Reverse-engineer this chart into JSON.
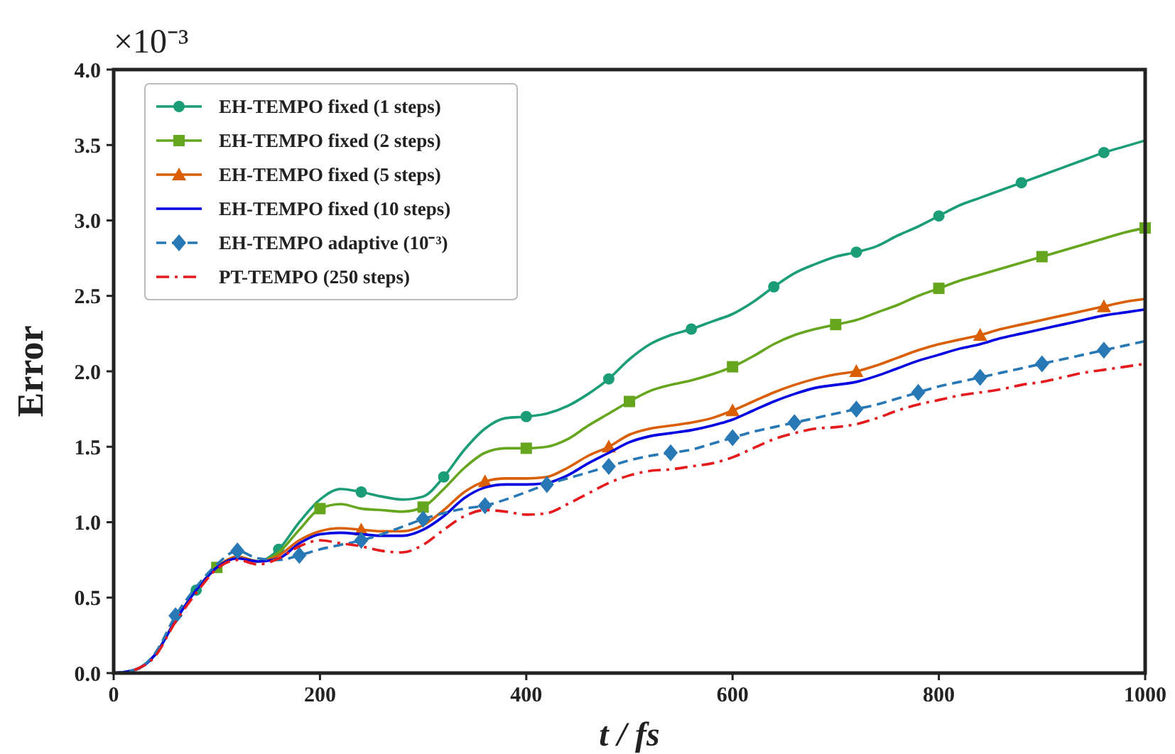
{
  "chart_data": {
    "type": "line",
    "xlabel": "t / fs",
    "ylabel": "Error",
    "annotations": [
      "×10⁻³"
    ],
    "x": [
      0,
      20,
      40,
      60,
      80,
      100,
      120,
      140,
      160,
      180,
      200,
      220,
      240,
      260,
      280,
      300,
      320,
      340,
      360,
      380,
      400,
      420,
      440,
      460,
      480,
      500,
      520,
      540,
      560,
      580,
      600,
      620,
      640,
      660,
      680,
      700,
      720,
      740,
      760,
      780,
      800,
      820,
      840,
      860,
      880,
      900,
      920,
      940,
      960,
      980,
      1000
    ],
    "xlim": [
      0,
      1000
    ],
    "xticks": [
      0,
      200,
      400,
      600,
      800,
      1000
    ],
    "ylim": [
      0,
      4
    ],
    "yticks": [
      {
        "value": 0,
        "label": "0.0"
      },
      {
        "value": 0.5,
        "label": "0.5"
      },
      {
        "value": 1,
        "label": "1.0"
      },
      {
        "value": 1.5,
        "label": "1.5"
      },
      {
        "value": 2,
        "label": "2.0"
      },
      {
        "value": 2.5,
        "label": "2.5"
      },
      {
        "value": 3,
        "label": "3.0"
      },
      {
        "value": 3.5,
        "label": "3.5"
      },
      {
        "value": 4,
        "label": "4.0"
      }
    ],
    "grid": false,
    "legend": "top left",
    "series": [
      {
        "name": "EH-TEMPO fixed (1 steps)",
        "color": "#1b9e77",
        "marker": "none",
        "line_style": "solid",
        "values": [
          0,
          0.02,
          0.12,
          0.35,
          0.55,
          0.7,
          0.77,
          0.74,
          0.82,
          1.0,
          1.15,
          1.22,
          1.2,
          1.17,
          1.15,
          1.17,
          1.3,
          1.48,
          1.62,
          1.69,
          1.7,
          1.72,
          1.77,
          1.85,
          1.95,
          2.08,
          2.18,
          2.24,
          2.28,
          2.33,
          2.38,
          2.46,
          2.56,
          2.65,
          2.71,
          2.76,
          2.79,
          2.83,
          2.9,
          2.96,
          3.03,
          3.1,
          3.15,
          3.2,
          3.25,
          3.3,
          3.35,
          3.4,
          3.45,
          3.49,
          3.53
        ]
      },
      {
        "type": "scatter",
        "color": "#1b9e77",
        "marker": "circle",
        "x": [
          80,
          160,
          240,
          320,
          400,
          480,
          560,
          640,
          720,
          800,
          880,
          960
        ],
        "values": [
          0.55,
          0.82,
          1.2,
          1.3,
          1.7,
          1.95,
          2.28,
          2.56,
          2.79,
          3.03,
          3.25,
          3.45
        ]
      },
      {
        "name": "EH-TEMPO fixed (2 steps)",
        "color": "#66a61e",
        "marker": "none",
        "line_style": "solid",
        "values": [
          null,
          null,
          null,
          null,
          0.55,
          0.7,
          0.77,
          0.74,
          0.8,
          0.95,
          1.09,
          1.12,
          1.09,
          1.08,
          1.07,
          1.1,
          1.22,
          1.36,
          1.46,
          1.49,
          1.49,
          1.5,
          1.55,
          1.64,
          1.72,
          1.8,
          1.87,
          1.91,
          1.94,
          1.98,
          2.03,
          2.1,
          2.18,
          2.24,
          2.28,
          2.31,
          2.34,
          2.39,
          2.44,
          2.5,
          2.55,
          2.6,
          2.64,
          2.68,
          2.72,
          2.76,
          2.8,
          2.84,
          2.88,
          2.92,
          2.95
        ]
      },
      {
        "type": "scatter",
        "color": "#66a61e",
        "marker": "square",
        "x": [
          100,
          200,
          300,
          400,
          500,
          600,
          700,
          800,
          900,
          1000
        ],
        "values": [
          0.7,
          1.09,
          1.1,
          1.49,
          1.8,
          2.03,
          2.31,
          2.55,
          2.76,
          2.95
        ]
      },
      {
        "name": "EH-TEMPO fixed (5 steps)",
        "color": "#d95f02",
        "marker": "none",
        "line_style": "solid",
        "values": [
          null,
          null,
          null,
          null,
          0.55,
          0.7,
          0.77,
          0.74,
          0.78,
          0.88,
          0.94,
          0.96,
          0.95,
          0.94,
          0.94,
          0.98,
          1.08,
          1.2,
          1.27,
          1.29,
          1.29,
          1.3,
          1.36,
          1.44,
          1.5,
          1.58,
          1.62,
          1.64,
          1.66,
          1.69,
          1.74,
          1.8,
          1.86,
          1.91,
          1.95,
          1.98,
          2.0,
          2.04,
          2.09,
          2.14,
          2.18,
          2.21,
          2.24,
          2.28,
          2.31,
          2.34,
          2.37,
          2.4,
          2.43,
          2.46,
          2.48
        ]
      },
      {
        "type": "scatter",
        "color": "#d95f02",
        "marker": "triangle",
        "x": [
          240,
          360,
          480,
          600,
          720,
          840,
          960
        ],
        "values": [
          0.95,
          1.27,
          1.5,
          1.74,
          2.0,
          2.24,
          2.43
        ]
      },
      {
        "name": "EH-TEMPO fixed (10 steps)",
        "color": "#0000e0",
        "marker": "none",
        "line_style": "solid",
        "values": [
          0,
          0.02,
          0.12,
          0.35,
          0.55,
          0.7,
          0.76,
          0.74,
          0.76,
          0.86,
          0.92,
          0.93,
          0.92,
          0.91,
          0.91,
          0.95,
          1.04,
          1.16,
          1.23,
          1.25,
          1.25,
          1.26,
          1.31,
          1.39,
          1.46,
          1.53,
          1.57,
          1.59,
          1.61,
          1.64,
          1.68,
          1.74,
          1.8,
          1.85,
          1.89,
          1.91,
          1.93,
          1.97,
          2.02,
          2.07,
          2.11,
          2.15,
          2.18,
          2.22,
          2.25,
          2.28,
          2.31,
          2.34,
          2.37,
          2.39,
          2.41
        ]
      },
      {
        "name": "EH-TEMPO adaptive (10⁻³)",
        "color": "#2878b5",
        "marker": "none",
        "line_style": "dashed",
        "values": [
          0,
          0.02,
          0.13,
          0.38,
          0.57,
          0.72,
          0.81,
          0.76,
          0.75,
          0.78,
          0.82,
          0.85,
          0.88,
          0.92,
          0.97,
          1.02,
          1.06,
          1.09,
          1.11,
          1.15,
          1.2,
          1.25,
          1.29,
          1.33,
          1.37,
          1.41,
          1.44,
          1.46,
          1.48,
          1.52,
          1.56,
          1.6,
          1.63,
          1.66,
          1.69,
          1.72,
          1.75,
          1.78,
          1.82,
          1.86,
          1.9,
          1.93,
          1.96,
          1.99,
          2.02,
          2.05,
          2.08,
          2.11,
          2.14,
          2.17,
          2.2
        ]
      },
      {
        "type": "scatter",
        "color": "#2878b5",
        "marker": "diamond",
        "x": [
          60,
          120,
          180,
          240,
          300,
          360,
          420,
          480,
          540,
          600,
          660,
          720,
          780,
          840,
          900,
          960
        ],
        "values": [
          0.38,
          0.81,
          0.78,
          0.88,
          1.02,
          1.11,
          1.25,
          1.37,
          1.46,
          1.56,
          1.66,
          1.75,
          1.86,
          1.96,
          2.05,
          2.14
        ]
      },
      {
        "name": "PT-TEMPO (250 steps)",
        "color": "#e41a1c",
        "marker": "none",
        "line_style": "dashdot",
        "values": [
          null,
          0.02,
          0.11,
          0.34,
          0.53,
          0.69,
          0.75,
          0.72,
          0.76,
          0.84,
          0.88,
          0.86,
          0.84,
          0.81,
          0.8,
          0.85,
          0.95,
          1.04,
          1.08,
          1.07,
          1.05,
          1.06,
          1.12,
          1.19,
          1.26,
          1.31,
          1.34,
          1.35,
          1.37,
          1.39,
          1.43,
          1.49,
          1.55,
          1.59,
          1.62,
          1.63,
          1.65,
          1.69,
          1.74,
          1.78,
          1.81,
          1.84,
          1.86,
          1.88,
          1.91,
          1.93,
          1.96,
          1.99,
          2.01,
          2.03,
          2.05
        ]
      }
    ]
  }
}
